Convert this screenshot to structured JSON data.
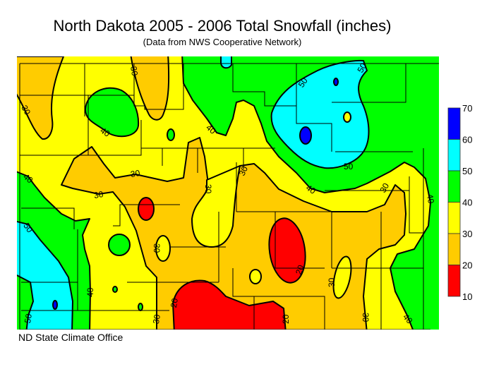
{
  "header": {
    "title": "North Dakota 2005 - 2006 Total Snowfall (inches)",
    "subtitle": "(Data from NWS Cooperative Network)"
  },
  "footer": "ND State Climate Office",
  "legend": {
    "bins": [
      {
        "from": 60,
        "to": 70,
        "color": "#0000ff"
      },
      {
        "from": 50,
        "to": 60,
        "color": "#00ffff"
      },
      {
        "from": 40,
        "to": 50,
        "color": "#00ff00"
      },
      {
        "from": 30,
        "to": 40,
        "color": "#ffff00"
      },
      {
        "from": 20,
        "to": 30,
        "color": "#ffcc00"
      },
      {
        "from": 10,
        "to": 20,
        "color": "#ff0000"
      }
    ],
    "labels": [
      "70",
      "60",
      "50",
      "40",
      "30",
      "20",
      "10"
    ]
  },
  "contour_labels": [
    "30",
    "40",
    "30",
    "40",
    "30",
    "40",
    "50",
    "50",
    "50",
    "30",
    "40",
    "40",
    "30",
    "30",
    "30",
    "30",
    "50",
    "40",
    "50",
    "20",
    "30",
    "20",
    "30",
    "20",
    "30",
    "40"
  ]
}
